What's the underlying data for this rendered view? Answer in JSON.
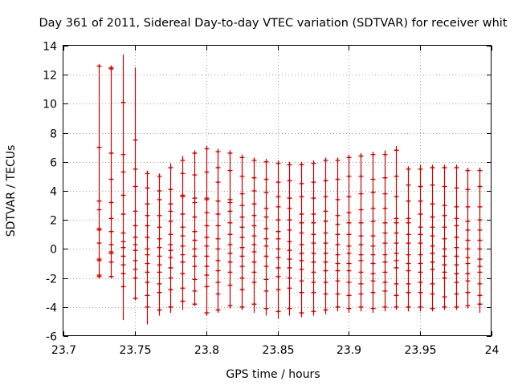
{
  "chart_data": {
    "type": "scatter",
    "title": "Day 361 of 2011, Sidereal Day-to-day VTEC variation (SDTVAR) for receiver whit",
    "xlabel": "GPS time / hours",
    "ylabel": "SDTVAR / TECUs",
    "xlim": [
      23.7,
      24
    ],
    "ylim": [
      -6,
      14
    ],
    "x_ticks": [
      23.7,
      23.75,
      23.8,
      23.85,
      23.9,
      23.95,
      24
    ],
    "x_tick_labels": [
      "23.7",
      "23.75",
      "23.8",
      "23.85",
      "23.9",
      "23.95",
      "24"
    ],
    "y_ticks": [
      -6,
      -4,
      -2,
      0,
      2,
      4,
      6,
      8,
      10,
      12,
      14
    ],
    "y_tick_labels": [
      "-6",
      "-4",
      "-2",
      "0",
      "2",
      "4",
      "6",
      "8",
      "10",
      "12",
      "14"
    ],
    "grid": true,
    "grid_style": "dotted",
    "series_color": "#cc0000",
    "series": [
      {
        "name": "SDTVAR",
        "x": 23.725,
        "low": -1.9,
        "high": 12.6,
        "points": [
          12.6,
          7.0,
          3.3,
          2.7,
          1.4,
          1.3,
          0.4,
          -0.7,
          -0.8,
          -1.8,
          -1.9
        ]
      },
      {
        "name": "SDTVAR",
        "x": 23.7333,
        "low": -1.9,
        "high": 12.5,
        "points": [
          12.5,
          12.4,
          6.6,
          4.8,
          3.2,
          2.1,
          1.2,
          0.3,
          -0.2,
          -0.3,
          -0.9,
          -1.9
        ]
      },
      {
        "name": "SDTVAR",
        "x": 23.7417,
        "low": -4.9,
        "high": 13.4,
        "points": [
          10.1,
          6.5,
          5.3,
          3.7,
          2.4,
          1.1,
          0.5,
          0.1,
          -0.5,
          -1.1,
          -1.7,
          -2.6
        ]
      },
      {
        "name": "SDTVAR",
        "x": 23.75,
        "low": -3.5,
        "high": 12.5,
        "points": [
          7.5,
          5.5,
          4.3,
          2.6,
          1.6,
          0.8,
          0.3,
          -0.1,
          -0.8,
          -1.4,
          -2.0,
          -3.4
        ]
      },
      {
        "name": "SDTVAR",
        "x": 23.7583,
        "low": -5.2,
        "high": 5.4,
        "points": [
          5.2,
          4.2,
          3.1,
          2.3,
          1.6,
          0.8,
          0.0,
          -0.4,
          -1.0,
          -1.6,
          -2.3,
          -3.2,
          -4.0
        ]
      },
      {
        "name": "SDTVAR",
        "x": 23.7667,
        "low": -4.6,
        "high": 5.2,
        "points": [
          5.0,
          4.0,
          3.4,
          2.3,
          1.5,
          0.7,
          0.1,
          -0.5,
          -1.1,
          -1.6,
          -2.4,
          -3.0,
          -4.2
        ]
      },
      {
        "name": "SDTVAR",
        "x": 23.775,
        "low": -4.4,
        "high": 5.9,
        "points": [
          5.6,
          4.1,
          3.1,
          2.6,
          1.9,
          1.0,
          0.3,
          -0.1,
          -0.6,
          -1.3,
          -2.0,
          -2.8,
          -4.0
        ]
      },
      {
        "name": "SDTVAR",
        "x": 23.7833,
        "low": -4.2,
        "high": 6.4,
        "points": [
          6.1,
          5.2,
          3.7,
          3.6,
          2.4,
          1.5,
          0.9,
          0.2,
          -0.4,
          -0.9,
          -1.7,
          -2.7,
          -3.6
        ]
      },
      {
        "name": "SDTVAR",
        "x": 23.7917,
        "low": -3.9,
        "high": 6.8,
        "points": [
          6.6,
          5.1,
          3.5,
          3.2,
          2.2,
          1.2,
          0.6,
          0.0,
          -0.5,
          -1.2,
          -2.1,
          -2.9,
          -3.8
        ]
      },
      {
        "name": "SDTVAR",
        "x": 23.8,
        "low": -4.6,
        "high": 7.1,
        "points": [
          6.9,
          5.3,
          3.5,
          3.4,
          2.5,
          1.6,
          0.8,
          0.2,
          -0.5,
          -1.2,
          -1.8,
          -2.6,
          -4.4
        ]
      },
      {
        "name": "SDTVAR",
        "x": 23.8083,
        "low": -4.4,
        "high": 6.9,
        "points": [
          6.7,
          5.6,
          4.6,
          3.3,
          2.4,
          1.6,
          0.7,
          0.0,
          -0.8,
          -1.5,
          -2.3,
          -3.1,
          -4.2
        ]
      },
      {
        "name": "SDTVAR",
        "x": 23.8167,
        "low": -4.1,
        "high": 6.8,
        "points": [
          6.6,
          5.4,
          3.4,
          3.2,
          2.6,
          1.8,
          1.0,
          0.3,
          -0.3,
          -0.9,
          -1.6,
          -2.5,
          -3.9
        ]
      },
      {
        "name": "SDTVAR",
        "x": 23.825,
        "low": -4.2,
        "high": 6.5,
        "points": [
          6.3,
          5.0,
          3.8,
          3.0,
          2.2,
          1.5,
          0.8,
          0.1,
          -0.5,
          -1.2,
          -2.0,
          -2.8,
          -4.0
        ]
      },
      {
        "name": "SDTVAR",
        "x": 23.8333,
        "low": -4.4,
        "high": 6.3,
        "points": [
          6.1,
          4.9,
          4.0,
          3.1,
          2.3,
          1.6,
          0.9,
          0.3,
          -0.2,
          -0.9,
          -1.6,
          -2.3,
          -3.8
        ]
      },
      {
        "name": "SDTVAR",
        "x": 23.8417,
        "low": -4.6,
        "high": 6.2,
        "points": [
          6.0,
          4.8,
          3.9,
          2.8,
          2.2,
          1.4,
          0.7,
          0.2,
          -0.5,
          -1.2,
          -2.1,
          -2.9,
          -4.1
        ]
      },
      {
        "name": "SDTVAR",
        "x": 23.85,
        "low": -4.8,
        "high": 6.1,
        "points": [
          5.9,
          4.6,
          3.6,
          2.9,
          2.0,
          1.2,
          0.7,
          0.0,
          -0.6,
          -1.3,
          -1.9,
          -2.8,
          -4.3
        ]
      },
      {
        "name": "SDTVAR",
        "x": 23.8583,
        "low": -4.6,
        "high": 6.0,
        "points": [
          5.8,
          4.7,
          3.5,
          2.8,
          2.0,
          1.3,
          0.5,
          -0.1,
          -0.7,
          -1.3,
          -2.0,
          -2.7,
          -4.1
        ]
      },
      {
        "name": "SDTVAR",
        "x": 23.8667,
        "low": -4.7,
        "high": 6.0,
        "points": [
          5.8,
          4.5,
          3.6,
          2.4,
          1.8,
          1.1,
          0.3,
          -0.3,
          -0.8,
          -1.4,
          -2.2,
          -3.0,
          -4.4
        ]
      },
      {
        "name": "SDTVAR",
        "x": 23.875,
        "low": -4.6,
        "high": 6.1,
        "points": [
          5.9,
          4.6,
          3.5,
          2.4,
          1.8,
          1.0,
          0.4,
          -0.3,
          -0.9,
          -1.6,
          -2.3,
          -3.0,
          -4.3
        ]
      },
      {
        "name": "SDTVAR",
        "x": 23.8833,
        "low": -4.5,
        "high": 6.3,
        "points": [
          6.1,
          4.7,
          3.6,
          2.6,
          1.9,
          1.1,
          0.4,
          -0.3,
          -0.9,
          -1.5,
          -2.3,
          -3.1,
          -4.2
        ]
      },
      {
        "name": "SDTVAR",
        "x": 23.8917,
        "low": -4.3,
        "high": 6.3,
        "points": [
          6.1,
          4.8,
          3.4,
          2.3,
          1.7,
          1.0,
          0.3,
          -0.4,
          -1.0,
          -1.5,
          -2.2,
          -3.1,
          -4.0
        ]
      },
      {
        "name": "SDTVAR",
        "x": 23.9,
        "low": -4.4,
        "high": 6.5,
        "points": [
          6.3,
          5.0,
          3.6,
          2.5,
          1.8,
          1.0,
          0.2,
          -0.3,
          -1.0,
          -1.5,
          -2.3,
          -3.2,
          -4.1
        ]
      },
      {
        "name": "SDTVAR",
        "x": 23.9083,
        "low": -4.3,
        "high": 6.6,
        "points": [
          6.4,
          5.0,
          3.8,
          2.7,
          1.8,
          0.9,
          0.3,
          -0.4,
          -0.8,
          -1.6,
          -2.4,
          -3.1,
          -4.0
        ]
      },
      {
        "name": "SDTVAR",
        "x": 23.9167,
        "low": -4.4,
        "high": 6.7,
        "points": [
          6.5,
          4.8,
          3.9,
          2.8,
          1.9,
          0.9,
          0.2,
          -0.4,
          -1.0,
          -1.7,
          -2.2,
          -3.0,
          -4.1
        ]
      },
      {
        "name": "SDTVAR",
        "x": 23.925,
        "low": -4.3,
        "high": 6.8,
        "points": [
          6.5,
          4.9,
          3.8,
          2.8,
          1.8,
          1.1,
          0.4,
          -0.4,
          -0.9,
          -1.6,
          -2.3,
          -2.9,
          -4.0
        ]
      },
      {
        "name": "SDTVAR",
        "x": 23.9333,
        "low": -4.2,
        "high": 7.1,
        "points": [
          6.8,
          5.0,
          3.6,
          2.1,
          1.8,
          1.1,
          0.4,
          -0.3,
          -0.8,
          -1.3,
          -2.4,
          -3.2,
          -4.0
        ]
      },
      {
        "name": "SDTVAR",
        "x": 23.9417,
        "low": -4.3,
        "high": 5.7,
        "points": [
          5.5,
          4.4,
          3.3,
          2.1,
          1.8,
          1.0,
          0.4,
          -0.4,
          -1.0,
          -1.5,
          -2.4,
          -3.0,
          -4.0
        ]
      },
      {
        "name": "SDTVAR",
        "x": 23.95,
        "low": -4.3,
        "high": 5.8,
        "points": [
          5.5,
          4.3,
          3.3,
          2.4,
          1.5,
          1.0,
          0.4,
          -0.4,
          -1.0,
          -1.6,
          -2.3,
          -3.0,
          -4.0
        ]
      },
      {
        "name": "SDTVAR",
        "x": 23.9583,
        "low": -4.3,
        "high": 5.8,
        "points": [
          5.6,
          4.4,
          3.1,
          2.2,
          1.5,
          0.9,
          0.2,
          -0.3,
          -0.9,
          -1.4,
          -2.4,
          -3.1,
          -4.1
        ]
      },
      {
        "name": "SDTVAR",
        "x": 23.9667,
        "low": -4.2,
        "high": 5.8,
        "points": [
          5.6,
          4.3,
          3.0,
          2.3,
          1.5,
          0.7,
          0.0,
          -0.5,
          -1.1,
          -1.6,
          -2.0,
          -3.3,
          -4.0
        ]
      },
      {
        "name": "SDTVAR",
        "x": 23.975,
        "low": -4.2,
        "high": 5.8,
        "points": [
          5.6,
          4.2,
          2.9,
          2.1,
          1.6,
          0.8,
          0.1,
          -0.5,
          -1.1,
          -1.7,
          -2.3,
          -3.1,
          -4.0
        ]
      },
      {
        "name": "SDTVAR",
        "x": 23.9833,
        "low": -4.1,
        "high": 5.6,
        "points": [
          5.4,
          4.1,
          2.9,
          1.9,
          1.3,
          0.6,
          0.0,
          -0.6,
          -1.0,
          -1.7,
          -2.2,
          -3.0,
          -3.9
        ]
      },
      {
        "name": "SDTVAR",
        "x": 23.9917,
        "low": -4.4,
        "high": 5.6,
        "points": [
          5.4,
          4.3,
          2.9,
          2.0,
          1.3,
          0.6,
          0.0,
          -0.7,
          -1.2,
          -1.6,
          -2.4,
          -3.2,
          -3.8
        ]
      }
    ]
  }
}
